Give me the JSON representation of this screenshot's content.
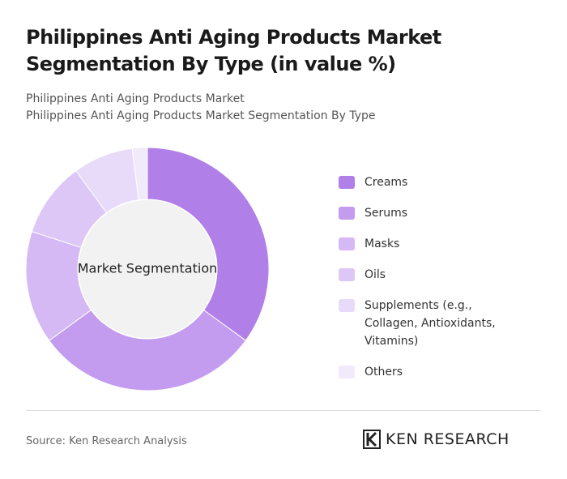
{
  "chart_data": {
    "type": "donut",
    "title": "Philippines Anti Aging Products Market Segmentation By Type (in value %)",
    "subtitle": [
      "Philippines Anti Aging Products Market",
      "Philippines Anti Aging Products Market Segmentation By Type"
    ],
    "center_label": "Market Segmentation",
    "categories": [
      "Creams",
      "Serums",
      "Masks",
      "Oils",
      "Supplements (e.g., Collagen, Antioxidants, Vitamins)",
      "Others"
    ],
    "values": [
      35,
      30,
      15,
      10,
      8,
      2
    ],
    "colors": [
      "#b07fe8",
      "#c39cf0",
      "#d4b9f5",
      "#dcc7f6",
      "#e8dbf9",
      "#f1eafb"
    ],
    "source": "Source: Ken Research Analysis",
    "brand": "KEN RESEARCH"
  }
}
